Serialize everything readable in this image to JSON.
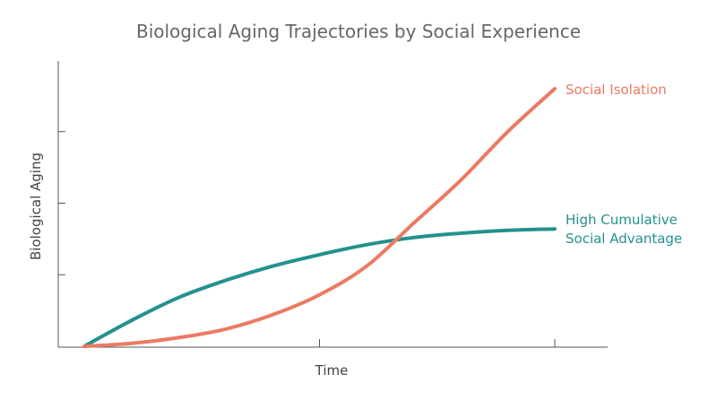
{
  "chart_data": {
    "type": "line",
    "title": "Biological Aging Trajectories by Social Experience",
    "xlabel": "Time",
    "ylabel": "Biological Aging",
    "xlim": [
      0,
      1
    ],
    "ylim": [
      0,
      1
    ],
    "x_ticks": [
      0.5,
      1.0
    ],
    "y_ticks": [
      0.25,
      0.5,
      0.75
    ],
    "tick_labels_shown": false,
    "grid": false,
    "legend": "direct labels at line ends",
    "series": [
      {
        "name": "Social Isolation",
        "label_lines": [
          "Social Isolation"
        ],
        "color": "#EC7A63",
        "x": [
          0,
          0.1,
          0.2,
          0.3,
          0.4,
          0.5,
          0.6,
          0.7,
          0.8,
          0.9,
          1.0
        ],
        "y": [
          0,
          0.01,
          0.03,
          0.06,
          0.11,
          0.18,
          0.28,
          0.43,
          0.58,
          0.75,
          0.9
        ]
      },
      {
        "name": "High Cumulative Social Advantage",
        "label_lines": [
          "High Cumulative",
          "Social Advantage"
        ],
        "color": "#23918E",
        "x": [
          0,
          0.1,
          0.2,
          0.3,
          0.4,
          0.5,
          0.6,
          0.7,
          0.8,
          0.9,
          1.0
        ],
        "y": [
          0,
          0.09,
          0.17,
          0.23,
          0.28,
          0.32,
          0.355,
          0.38,
          0.395,
          0.405,
          0.41
        ]
      }
    ]
  }
}
